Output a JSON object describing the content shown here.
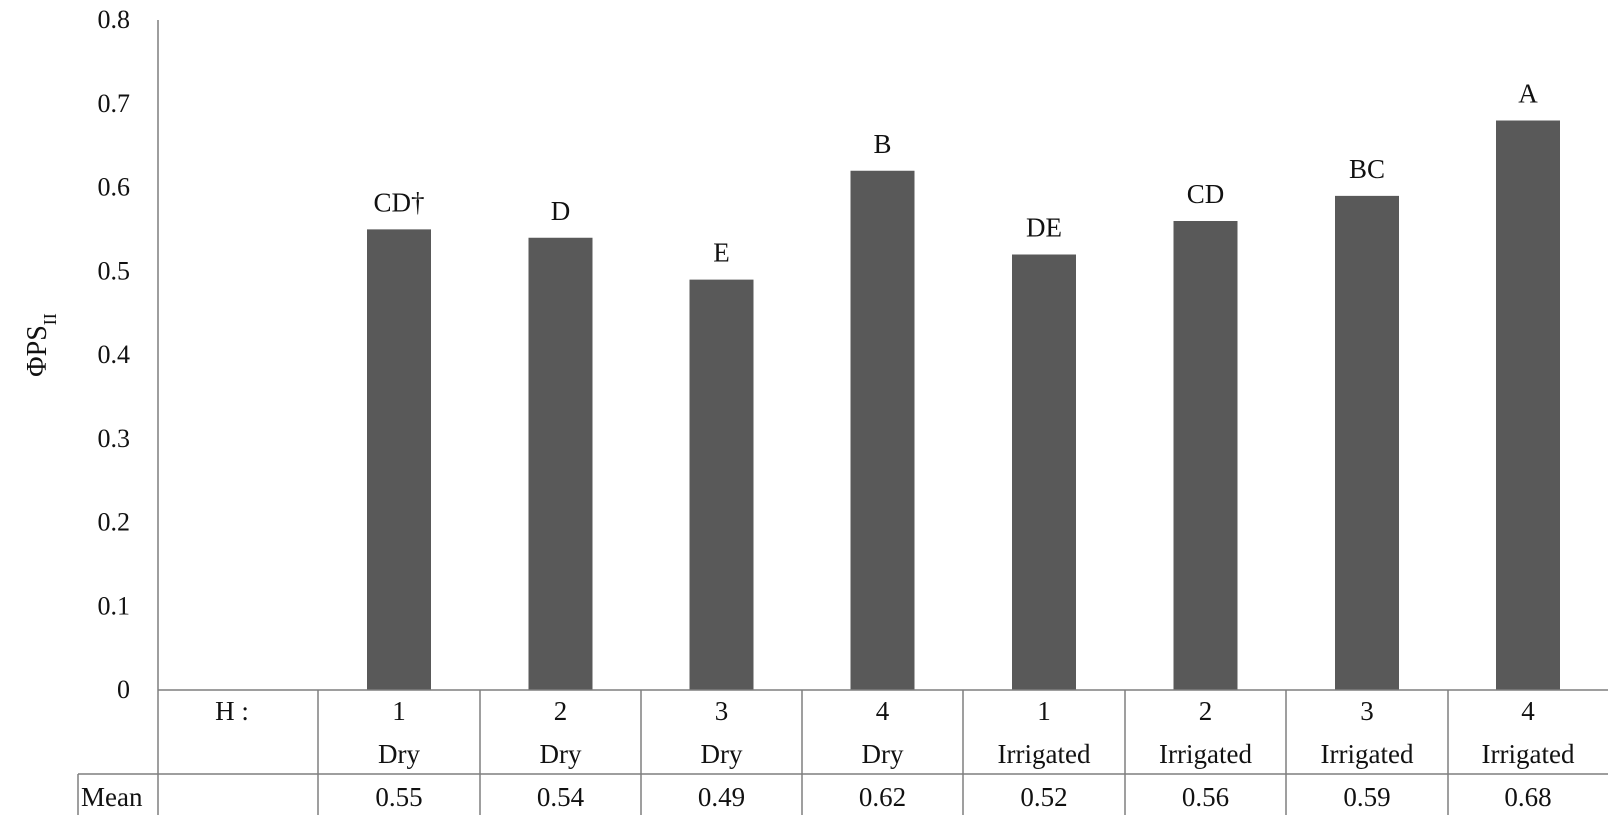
{
  "chart_data": {
    "type": "bar",
    "ylabel": "ΦPS",
    "ylabel_subscript": "II",
    "ylim": [
      0,
      0.8
    ],
    "yticks": [
      0,
      0.1,
      0.2,
      0.3,
      0.4,
      0.5,
      0.6,
      0.7,
      0.8
    ],
    "ytick_labels": [
      "0",
      "0.1",
      "0.2",
      "0.3",
      "0.4",
      "0.5",
      "0.6",
      "0.7",
      "0.8"
    ],
    "grid": false,
    "bar_color": "#595959",
    "table": {
      "row1_label": "H   :",
      "row3_label": "Mean"
    },
    "categories": [
      {
        "h": "1",
        "treatment": "Dry",
        "value": 0.55,
        "mean_label": "0.55",
        "significance": "CD†"
      },
      {
        "h": "2",
        "treatment": "Dry",
        "value": 0.54,
        "mean_label": "0.54",
        "significance": "D"
      },
      {
        "h": "3",
        "treatment": "Dry",
        "value": 0.49,
        "mean_label": "0.49",
        "significance": "E"
      },
      {
        "h": "4",
        "treatment": "Dry",
        "value": 0.62,
        "mean_label": "0.62",
        "significance": "B"
      },
      {
        "h": "1",
        "treatment": "Irrigated",
        "value": 0.52,
        "mean_label": "0.52",
        "significance": "DE"
      },
      {
        "h": "2",
        "treatment": "Irrigated",
        "value": 0.56,
        "mean_label": "0.56",
        "significance": "CD"
      },
      {
        "h": "3",
        "treatment": "Irrigated",
        "value": 0.59,
        "mean_label": "0.59",
        "significance": "BC"
      },
      {
        "h": "4",
        "treatment": "Irrigated",
        "value": 0.68,
        "mean_label": "0.68",
        "significance": "A"
      }
    ]
  }
}
